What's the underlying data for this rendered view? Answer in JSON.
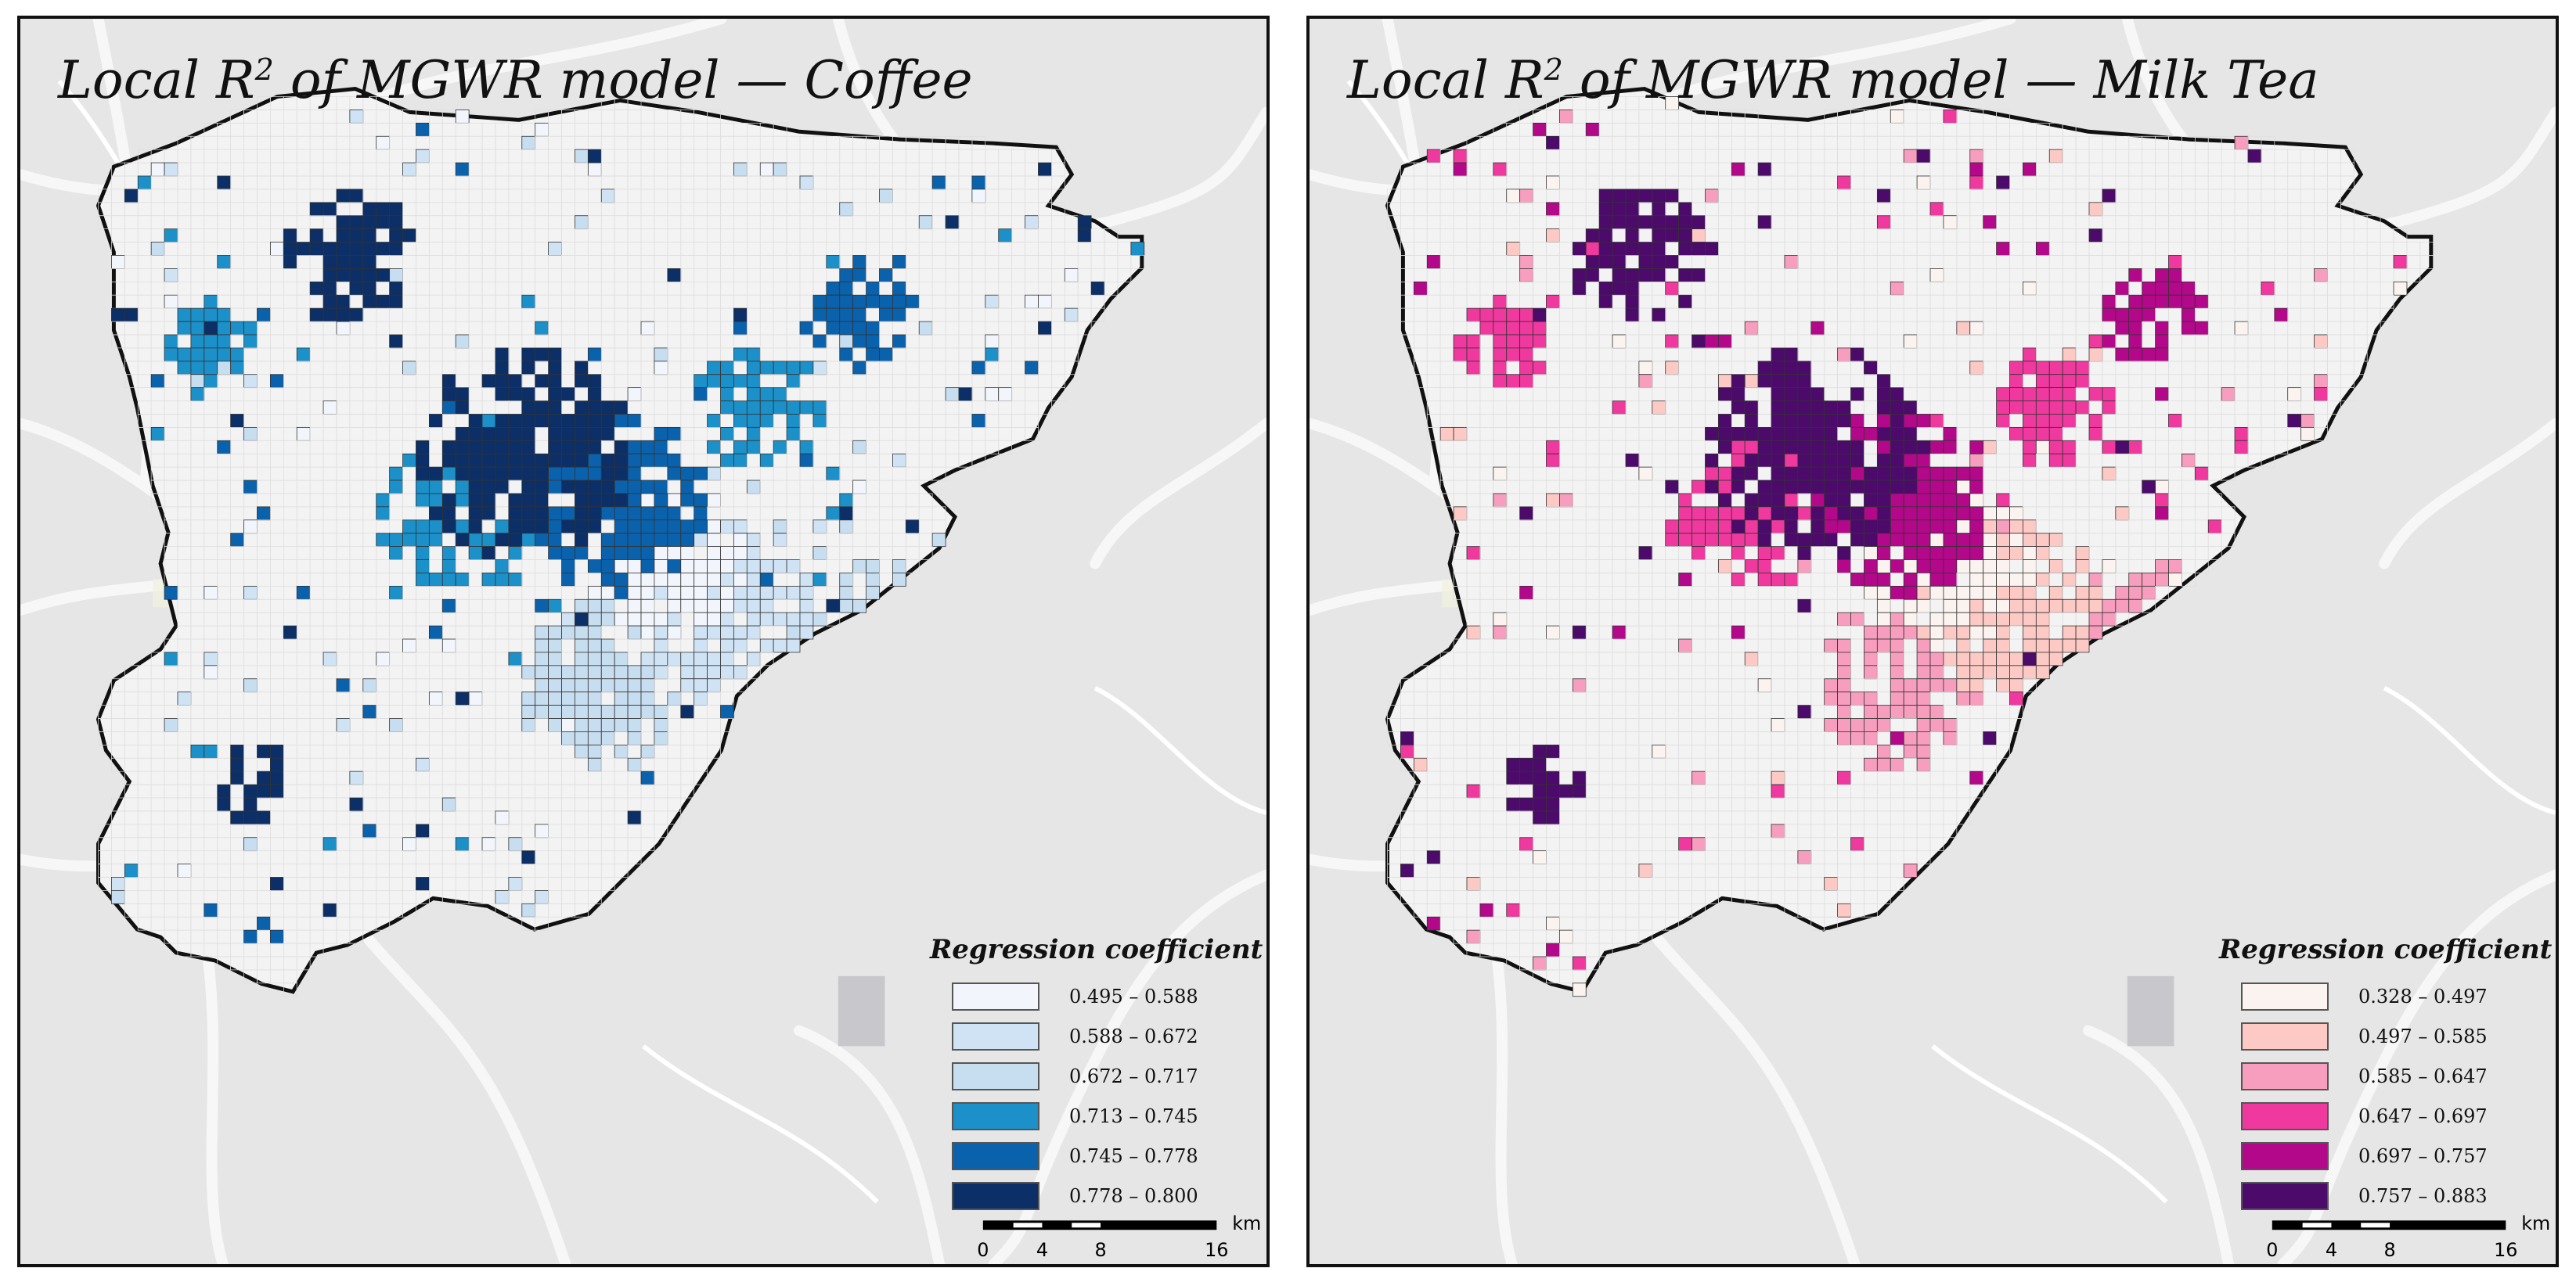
{
  "panels": [
    {
      "title_prefix": "Local R",
      "title_sup": "2",
      "title_suffix": " of MGWR model — Coffee",
      "legend_title": "Regression coefficient",
      "classes": [
        {
          "label": "0.495  –  0.588",
          "color": "#f2f6fc"
        },
        {
          "label": "0.588  –  0.672",
          "color": "#cfe3f5"
        },
        {
          "label": "0.672  –  0.717",
          "color": "#c7ddf0"
        },
        {
          "label": "0.713  –  0.745",
          "color": "#1c90c9"
        },
        {
          "label": "0.745  –  0.778",
          "color": "#0a62ad"
        },
        {
          "label": "0.778  –  0.800",
          "color": "#0b2f66"
        }
      ],
      "scale_labels": [
        "0",
        "4",
        "8",
        "16"
      ],
      "scale_unit": "km"
    },
    {
      "title_prefix": "Local R",
      "title_sup": "2",
      "title_suffix": " of MGWR model — Milk Tea",
      "legend_title": "Regression coefficient",
      "classes": [
        {
          "label": "0.328  –  0.497",
          "color": "#fbf3ef"
        },
        {
          "label": "0.497  –  0.585",
          "color": "#fcc9c5"
        },
        {
          "label": "0.585  –  0.647",
          "color": "#f79ebe"
        },
        {
          "label": "0.647  –  0.697",
          "color": "#f0399e"
        },
        {
          "label": "0.697  –  0.757",
          "color": "#b3088a"
        },
        {
          "label": "0.757  –  0.883",
          "color": "#4c0a6b"
        }
      ],
      "scale_labels": [
        "0",
        "4",
        "8",
        "16"
      ],
      "scale_unit": "km"
    }
  ]
}
